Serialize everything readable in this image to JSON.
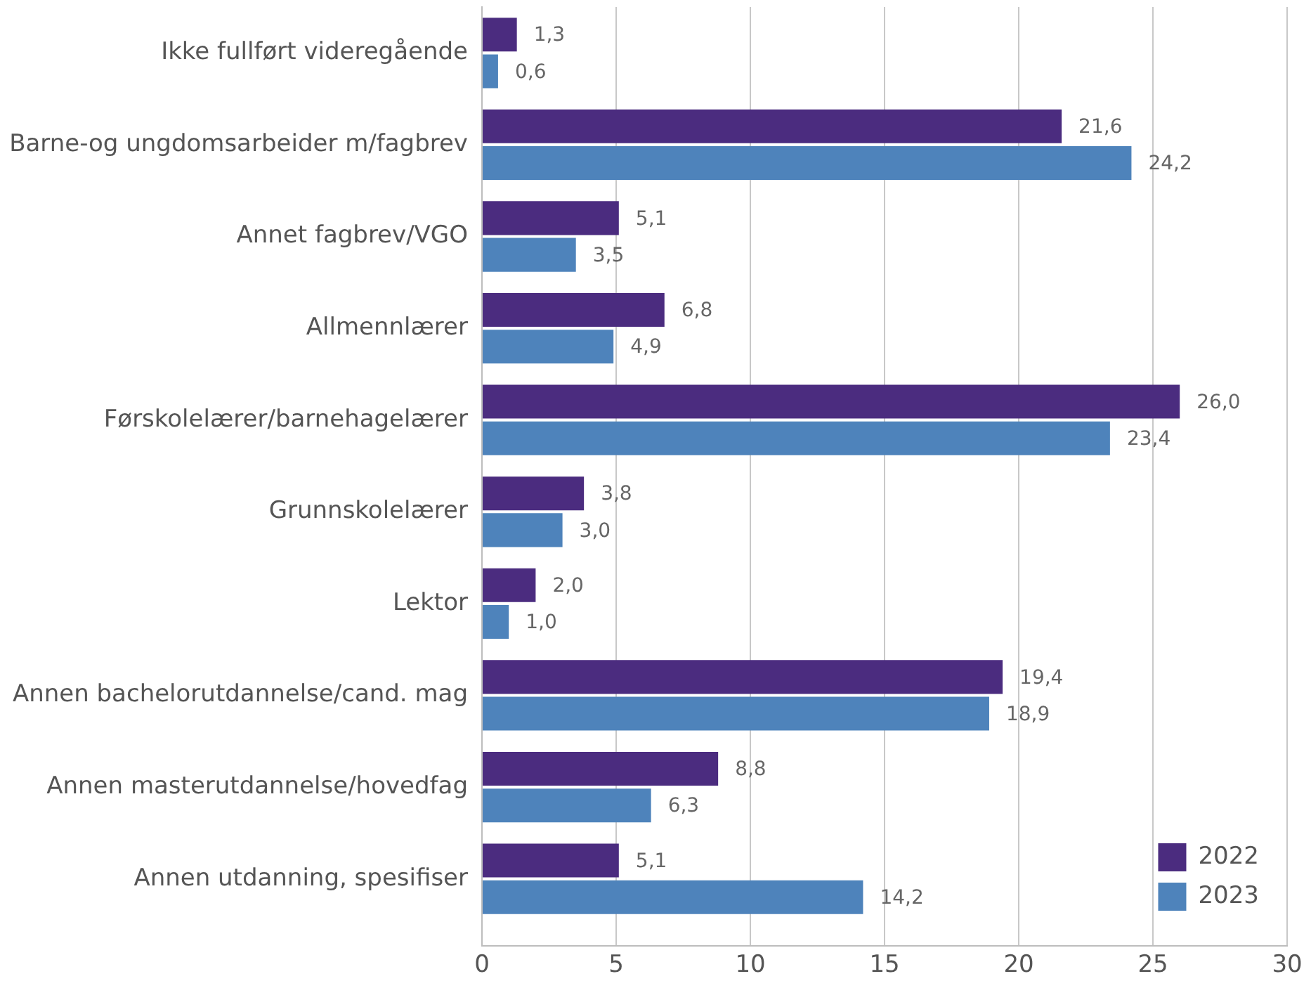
{
  "chart_data": {
    "type": "bar",
    "orientation": "horizontal",
    "categories": [
      "Ikke fullført videregående",
      "Barne-og ungdomsarbeider m/fagbrev",
      "Annet fagbrev/VGO",
      "Allmennlærer",
      "Førskolelærer/barnehagelærer",
      "Grunnskolelærer",
      "Lektor",
      "Annen bachelorutdannelse/cand. mag",
      "Annen masterutdannelse/hovedfag",
      "Annen utdanning, spesifiser"
    ],
    "series": [
      {
        "name": "2022",
        "color": "#4b2c7f",
        "values": [
          1.3,
          21.6,
          5.1,
          6.8,
          26.0,
          3.8,
          2.0,
          19.4,
          8.8,
          5.1
        ],
        "value_labels": [
          "1,3",
          "21,6",
          "5,1",
          "6,8",
          "26,0",
          "3,8",
          "2,0",
          "19,4",
          "8,8",
          "5,1"
        ]
      },
      {
        "name": "2023",
        "color": "#4e83bb",
        "values": [
          0.6,
          24.2,
          3.5,
          4.9,
          23.4,
          3.0,
          1.0,
          18.9,
          6.3,
          14.2
        ],
        "value_labels": [
          "0,6",
          "24,2",
          "3,5",
          "4,9",
          "23,4",
          "3,0",
          "1,0",
          "18,9",
          "6,3",
          "14,2"
        ]
      }
    ],
    "xlim": [
      0,
      30
    ],
    "xticks": [
      0,
      5,
      10,
      15,
      20,
      25,
      30
    ],
    "grid": "x",
    "legend": "bottom right"
  }
}
